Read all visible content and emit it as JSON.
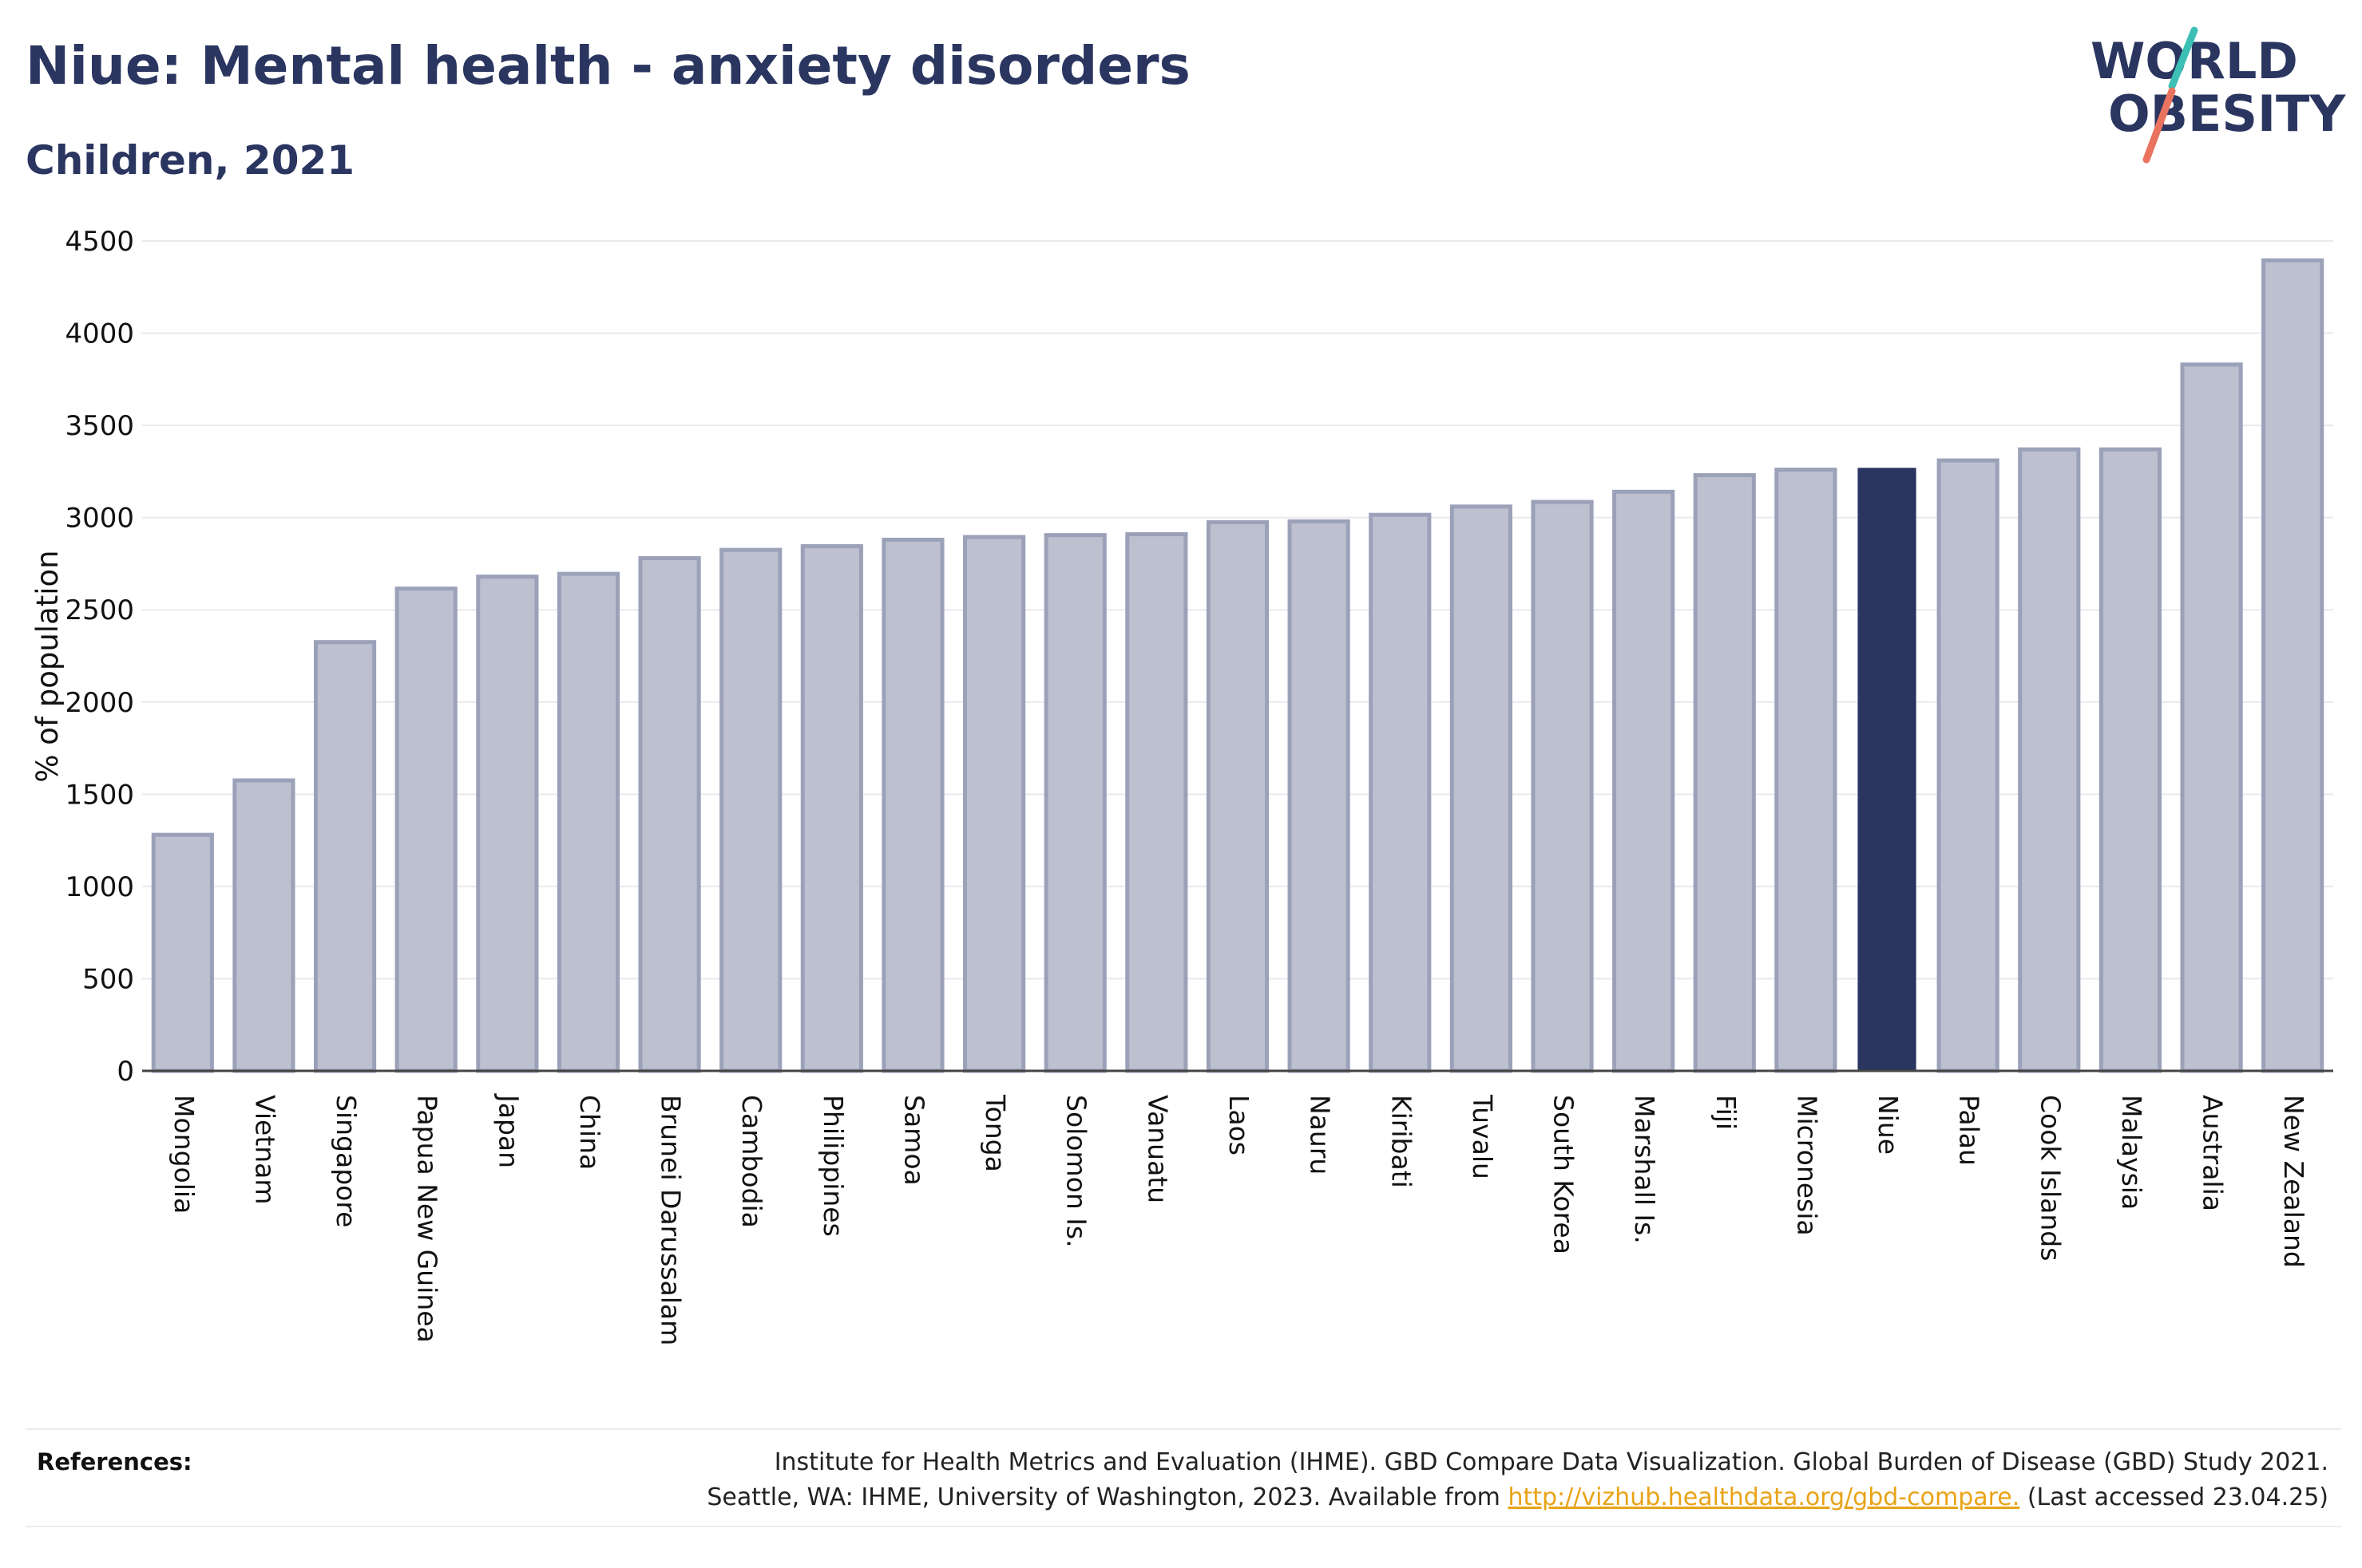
{
  "header": {
    "title": "Niue: Mental health - anxiety disorders",
    "subtitle": "Children, 2021"
  },
  "logo": {
    "line1": "WORLD",
    "line2": "OBESITY",
    "accent_teal": "#3cbfb4",
    "accent_coral": "#e9735f"
  },
  "colors": {
    "bar_default": "#bcc0cf",
    "bar_default_edge": "#9ba1b8",
    "bar_highlight": "#2a3560",
    "text_primary": "#2a3560",
    "link": "#e8a317"
  },
  "chart_data": {
    "type": "bar",
    "title": "Niue: Mental health - anxiety disorders",
    "subtitle": "Children, 2021",
    "xlabel": "",
    "ylabel": "% of population",
    "ylim": [
      0,
      4500
    ],
    "yticks": [
      0,
      500,
      1000,
      1500,
      2000,
      2500,
      3000,
      3500,
      4000,
      4500
    ],
    "grid": true,
    "highlight": "Niue",
    "categories": [
      "Mongolia",
      "Vietnam",
      "Singapore",
      "Papua New Guinea",
      "Japan",
      "China",
      "Brunei Darussalam",
      "Cambodia",
      "Philippines",
      "Samoa",
      "Tonga",
      "Solomon Is.",
      "Vanuatu",
      "Laos",
      "Nauru",
      "Kiribati",
      "Tuvalu",
      "South Korea",
      "Marshall Is.",
      "Fiji",
      "Micronesia",
      "Niue",
      "Palau",
      "Cook Islands",
      "Malaysia",
      "Australia",
      "New Zealand"
    ],
    "values": [
      1280,
      1575,
      2325,
      2615,
      2680,
      2695,
      2780,
      2825,
      2845,
      2880,
      2895,
      2905,
      2910,
      2975,
      2980,
      3015,
      3060,
      3085,
      3140,
      3230,
      3260,
      3270,
      3310,
      3370,
      3370,
      3830,
      4395
    ]
  },
  "references": {
    "label": "References:",
    "line1": "Institute for Health Metrics and Evaluation (IHME). GBD Compare Data Visualization. Global Burden of Disease (GBD) Study 2021.",
    "line2_prefix": "Seattle, WA: IHME, University of Washington, 2023. Available from ",
    "link_text": "http://vizhub.healthdata.org/gbd-compare.",
    "line2_suffix": " (Last accessed 23.04.25)"
  }
}
